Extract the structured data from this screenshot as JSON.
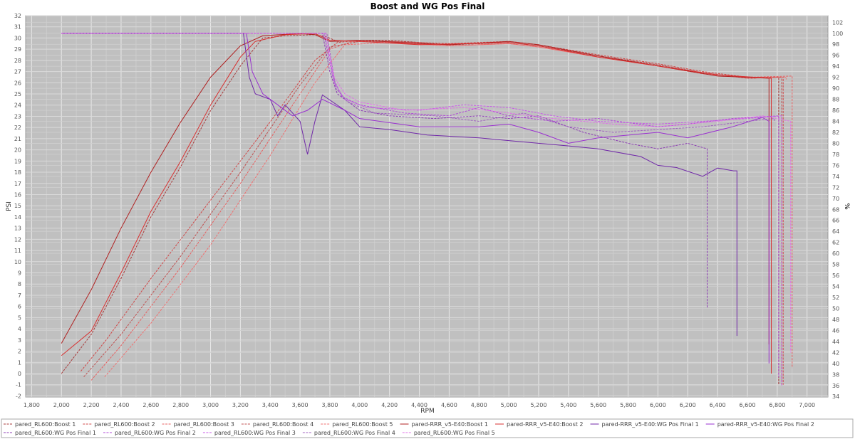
{
  "chart_data": {
    "type": "line",
    "title": "Boost and WG Pos Final",
    "xlabel": "RPM",
    "ylabel_left": "PSI",
    "ylabel_right": "%",
    "xlim": [
      1760,
      7140
    ],
    "ylim_left": [
      -2.1,
      32.0
    ],
    "ylim_right": [
      33.9,
      103.2
    ],
    "x_ticks": [
      1800,
      2000,
      2200,
      2400,
      2600,
      2800,
      3000,
      3200,
      3400,
      3600,
      3800,
      4000,
      4200,
      4400,
      4600,
      4800,
      5000,
      5200,
      5400,
      5600,
      5800,
      6000,
      6200,
      6400,
      6600,
      6800,
      7000
    ],
    "x_tick_labels": [
      "1,800",
      "2,000",
      "2,200",
      "2,400",
      "2,600",
      "2,800",
      "3,000",
      "3,200",
      "3,400",
      "3,600",
      "3,800",
      "4,000",
      "4,200",
      "4,400",
      "4,600",
      "4,800",
      "5,000",
      "5,200",
      "5,400",
      "5,600",
      "5,800",
      "6,000",
      "6,200",
      "6,400",
      "6,600",
      "6,800",
      "7,000"
    ],
    "y_left_ticks": [
      -2,
      -1,
      0,
      1,
      2,
      3,
      4,
      5,
      6,
      7,
      8,
      9,
      10,
      11,
      12,
      13,
      14,
      15,
      16,
      17,
      18,
      19,
      20,
      21,
      22,
      23,
      24,
      25,
      26,
      27,
      28,
      29,
      30,
      31,
      32
    ],
    "y_right_ticks": [
      34,
      36,
      38,
      40,
      42,
      44,
      46,
      48,
      50,
      52,
      54,
      56,
      58,
      60,
      62,
      64,
      66,
      68,
      70,
      72,
      74,
      76,
      78,
      80,
      82,
      84,
      86,
      88,
      90,
      92,
      94,
      96,
      98,
      100,
      102
    ],
    "grid": true,
    "legend_position": "bottom",
    "plot_background": "#c0c0c0",
    "series": [
      {
        "name": "pared_RL600:Boost 1",
        "axis": "left",
        "color": "#a83a3a",
        "dashed": true,
        "points": [
          [
            2000,
            0
          ],
          [
            2200,
            3.5
          ],
          [
            2400,
            8.5
          ],
          [
            2600,
            14
          ],
          [
            2800,
            18.5
          ],
          [
            3000,
            23.5
          ],
          [
            3200,
            27.5
          ],
          [
            3350,
            30
          ],
          [
            3500,
            30.2
          ],
          [
            3700,
            30.3
          ],
          [
            3780,
            30.1
          ],
          [
            3850,
            29.7
          ],
          [
            4000,
            29.8
          ],
          [
            4200,
            29.8
          ],
          [
            4600,
            29.4
          ],
          [
            5000,
            29.6
          ],
          [
            5200,
            29.3
          ],
          [
            5600,
            28.4
          ],
          [
            6000,
            27.6
          ],
          [
            6300,
            26.9
          ],
          [
            6600,
            26.4
          ],
          [
            6810,
            26.5
          ],
          [
            6810,
            -1
          ]
        ]
      },
      {
        "name": "pared_RL600:Boost 2",
        "axis": "left",
        "color": "#d04848",
        "dashed": true,
        "points": [
          [
            2130,
            0.2
          ],
          [
            2300,
            3
          ],
          [
            2600,
            8.5
          ],
          [
            3000,
            15.5
          ],
          [
            3400,
            22.5
          ],
          [
            3700,
            28
          ],
          [
            3850,
            29.6
          ],
          [
            4000,
            29.8
          ],
          [
            4200,
            29.7
          ],
          [
            4600,
            29.5
          ],
          [
            5000,
            29.7
          ],
          [
            5200,
            29.4
          ],
          [
            5600,
            28.5
          ],
          [
            6000,
            27.7
          ],
          [
            6300,
            27
          ],
          [
            6600,
            26.5
          ],
          [
            6840,
            26.5
          ],
          [
            6840,
            -1
          ]
        ]
      },
      {
        "name": "pared_RL600:Boost 3",
        "axis": "left",
        "color": "#e86060",
        "dashed": true,
        "points": [
          [
            2200,
            -0.6
          ],
          [
            2400,
            2.5
          ],
          [
            2800,
            9.5
          ],
          [
            3200,
            17
          ],
          [
            3600,
            25
          ],
          [
            3800,
            29
          ],
          [
            3950,
            29.7
          ],
          [
            4200,
            29.6
          ],
          [
            4600,
            29.3
          ],
          [
            5000,
            29.5
          ],
          [
            5200,
            29.2
          ],
          [
            5600,
            28.3
          ],
          [
            6000,
            27.5
          ],
          [
            6300,
            26.8
          ],
          [
            6600,
            26.5
          ],
          [
            6900,
            26.6
          ],
          [
            6900,
            0.5
          ]
        ]
      },
      {
        "name": "pared_RL600:Boost 4",
        "axis": "left",
        "color": "#c05050",
        "dashed": true,
        "points": [
          [
            2150,
            -0.3
          ],
          [
            2400,
            3.5
          ],
          [
            2800,
            10.5
          ],
          [
            3200,
            18
          ],
          [
            3600,
            25.8
          ],
          [
            3800,
            29.2
          ],
          [
            4000,
            29.7
          ],
          [
            4200,
            29.7
          ],
          [
            4600,
            29.4
          ],
          [
            5000,
            29.6
          ],
          [
            5200,
            29.3
          ],
          [
            5600,
            28.4
          ],
          [
            6000,
            27.6
          ],
          [
            6300,
            26.9
          ],
          [
            6600,
            26.4
          ],
          [
            6830,
            26.5
          ],
          [
            6830,
            -1
          ]
        ]
      },
      {
        "name": "pared_RL600:Boost 5",
        "axis": "left",
        "color": "#f07070",
        "dashed": true,
        "points": [
          [
            2290,
            -0.3
          ],
          [
            2600,
            4.5
          ],
          [
            3000,
            11.5
          ],
          [
            3400,
            19.5
          ],
          [
            3700,
            26
          ],
          [
            3900,
            29.4
          ],
          [
            4200,
            29.6
          ],
          [
            4600,
            29.3
          ],
          [
            5000,
            29.5
          ],
          [
            5200,
            29.2
          ],
          [
            5600,
            28.3
          ],
          [
            6000,
            27.5
          ],
          [
            6300,
            26.9
          ],
          [
            6600,
            26.4
          ],
          [
            6860,
            26.5
          ],
          [
            6860,
            26.3
          ]
        ]
      },
      {
        "name": "pared-RRR_v5-E40:Boost 1",
        "axis": "left",
        "color": "#b02020",
        "dashed": false,
        "points": [
          [
            2000,
            2.7
          ],
          [
            2200,
            7.5
          ],
          [
            2400,
            13
          ],
          [
            2600,
            18
          ],
          [
            2800,
            22.5
          ],
          [
            3000,
            26.5
          ],
          [
            3200,
            29.3
          ],
          [
            3350,
            30.2
          ],
          [
            3600,
            30.4
          ],
          [
            3700,
            30.3
          ],
          [
            3800,
            29.7
          ],
          [
            4000,
            29.8
          ],
          [
            4400,
            29.5
          ],
          [
            4600,
            29.4
          ],
          [
            5000,
            29.7
          ],
          [
            5200,
            29.4
          ],
          [
            5600,
            28.4
          ],
          [
            6000,
            27.5
          ],
          [
            6400,
            26.6
          ],
          [
            6745,
            26.4
          ],
          [
            6745,
            2.6
          ]
        ]
      },
      {
        "name": "pared-RRR_v5-E40:Boost 2",
        "axis": "left",
        "color": "#d83030",
        "dashed": false,
        "points": [
          [
            2000,
            1.6
          ],
          [
            2200,
            3.8
          ],
          [
            2400,
            9
          ],
          [
            2600,
            14.5
          ],
          [
            2800,
            19
          ],
          [
            3000,
            24
          ],
          [
            3200,
            28.3
          ],
          [
            3300,
            29.7
          ],
          [
            3500,
            30.3
          ],
          [
            3700,
            30.4
          ],
          [
            3800,
            29.8
          ],
          [
            4000,
            29.7
          ],
          [
            4400,
            29.4
          ],
          [
            5000,
            29.6
          ],
          [
            5200,
            29.3
          ],
          [
            5600,
            28.3
          ],
          [
            6000,
            27.5
          ],
          [
            6400,
            26.7
          ],
          [
            6760,
            26.4
          ],
          [
            6760,
            0
          ]
        ]
      },
      {
        "name": "pared-RRR_v5-E40:WG Pos Final 1",
        "axis": "right",
        "color": "#7028a8",
        "dashed": false,
        "points": [
          [
            2000,
            100
          ],
          [
            3220,
            100
          ],
          [
            3260,
            92
          ],
          [
            3300,
            89
          ],
          [
            3400,
            88
          ],
          [
            3450,
            85
          ],
          [
            3500,
            87
          ],
          [
            3600,
            84
          ],
          [
            3650,
            78
          ],
          [
            3700,
            84
          ],
          [
            3750,
            88.8
          ],
          [
            3900,
            86
          ],
          [
            4000,
            83
          ],
          [
            4200,
            82.5
          ],
          [
            4454,
            81.5
          ],
          [
            4800,
            81
          ],
          [
            5000,
            80.5
          ],
          [
            5408,
            79.5
          ],
          [
            5600,
            79
          ],
          [
            5885,
            77.6
          ],
          [
            6000,
            76
          ],
          [
            6125,
            75.6
          ],
          [
            6300,
            74
          ],
          [
            6400,
            75.5
          ],
          [
            6507,
            75
          ],
          [
            6530,
            75
          ],
          [
            6530,
            45
          ]
        ]
      },
      {
        "name": "pared-RRR_v5-E40:WG Pos Final 2",
        "axis": "right",
        "color": "#9a30d0",
        "dashed": false,
        "points": [
          [
            2000,
            100
          ],
          [
            3240,
            100
          ],
          [
            3280,
            93
          ],
          [
            3350,
            89
          ],
          [
            3450,
            87
          ],
          [
            3550,
            85
          ],
          [
            3650,
            86
          ],
          [
            3750,
            88
          ],
          [
            3900,
            86
          ],
          [
            4000,
            84.5
          ],
          [
            4400,
            83
          ],
          [
            4800,
            83
          ],
          [
            5000,
            83.5
          ],
          [
            5200,
            82
          ],
          [
            5400,
            80
          ],
          [
            5600,
            81
          ],
          [
            6000,
            82
          ],
          [
            6200,
            81
          ],
          [
            6500,
            83
          ],
          [
            6700,
            84.7
          ],
          [
            6745,
            84
          ],
          [
            6745,
            40
          ]
        ]
      },
      {
        "name": "pared_RL600:WG Pos Final 1",
        "axis": "right",
        "color": "#8c3cb4",
        "dashed": true,
        "points": [
          [
            2000,
            100
          ],
          [
            3750,
            100
          ],
          [
            3800,
            93
          ],
          [
            3850,
            89
          ],
          [
            4000,
            86
          ],
          [
            4200,
            85
          ],
          [
            4500,
            84.5
          ],
          [
            4800,
            85
          ],
          [
            5000,
            84.5
          ],
          [
            5200,
            85
          ],
          [
            5500,
            82
          ],
          [
            5800,
            80
          ],
          [
            6000,
            79
          ],
          [
            6200,
            80
          ],
          [
            6330,
            79
          ],
          [
            6330,
            50
          ]
        ]
      },
      {
        "name": "pared_RL600:WG Pos Final 2",
        "axis": "right",
        "color": "#b048d8",
        "dashed": true,
        "points": [
          [
            2000,
            100
          ],
          [
            3760,
            100
          ],
          [
            3820,
            92
          ],
          [
            3880,
            88.5
          ],
          [
            4000,
            87
          ],
          [
            4300,
            85.5
          ],
          [
            4600,
            85
          ],
          [
            4800,
            86.5
          ],
          [
            5000,
            85
          ],
          [
            5300,
            84
          ],
          [
            5600,
            84.5
          ],
          [
            6000,
            83
          ],
          [
            6200,
            83.5
          ],
          [
            6500,
            84.5
          ],
          [
            6810,
            85
          ],
          [
            6810,
            37.5
          ]
        ]
      },
      {
        "name": "pared_RL600:WG Pos Final 3",
        "axis": "right",
        "color": "#c858e8",
        "dashed": true,
        "points": [
          [
            2000,
            100
          ],
          [
            3770,
            100
          ],
          [
            3830,
            91
          ],
          [
            3900,
            88
          ],
          [
            4050,
            86.5
          ],
          [
            4400,
            86
          ],
          [
            4700,
            87
          ],
          [
            5000,
            86.5
          ],
          [
            5300,
            85
          ],
          [
            5600,
            84
          ],
          [
            6000,
            83.5
          ],
          [
            6300,
            84
          ],
          [
            6600,
            84.5
          ],
          [
            6830,
            85
          ],
          [
            6830,
            36
          ]
        ]
      },
      {
        "name": "pared_RL600:WG Pos Final 4",
        "axis": "right",
        "color": "#a060c0",
        "dashed": true,
        "points": [
          [
            2000,
            100
          ],
          [
            3780,
            100
          ],
          [
            3840,
            90
          ],
          [
            3920,
            87.5
          ],
          [
            4100,
            85.5
          ],
          [
            4500,
            85
          ],
          [
            4800,
            84
          ],
          [
            5100,
            85.5
          ],
          [
            5400,
            83
          ],
          [
            5700,
            82
          ],
          [
            6000,
            82.5
          ],
          [
            6300,
            83
          ],
          [
            6600,
            84
          ],
          [
            6780,
            84.5
          ],
          [
            6780,
            84
          ]
        ]
      },
      {
        "name": "pared_RL600:WG Pos Final 5",
        "axis": "right",
        "color": "#e070e8",
        "dashed": true,
        "points": [
          [
            2000,
            100
          ],
          [
            3770,
            100
          ],
          [
            3830,
            92
          ],
          [
            3900,
            89
          ],
          [
            4000,
            87.5
          ],
          [
            4300,
            86
          ],
          [
            4700,
            86.5
          ],
          [
            5000,
            85.5
          ],
          [
            5300,
            84.5
          ],
          [
            5700,
            83.5
          ],
          [
            6000,
            83
          ],
          [
            6400,
            84
          ],
          [
            6700,
            85
          ],
          [
            6890,
            84
          ],
          [
            6890,
            42
          ]
        ]
      }
    ]
  }
}
